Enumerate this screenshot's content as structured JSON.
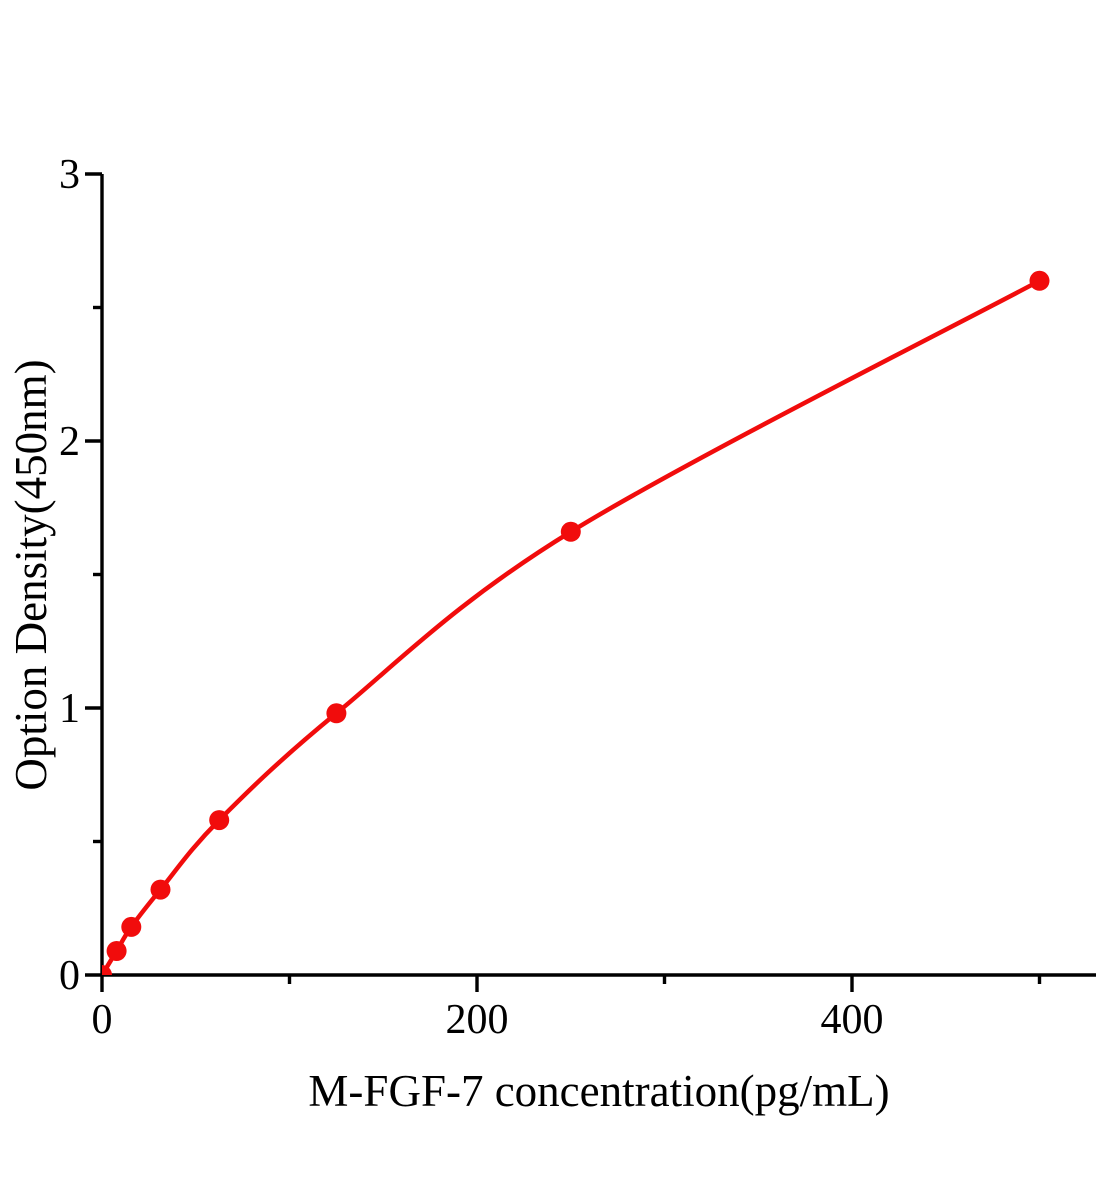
{
  "chart_data": {
    "type": "line",
    "subtype": "elisa-standard-curve-scatter-with-smooth-fit",
    "title": "",
    "xlabel": "M-FGF-7 concentration(pg/mL)",
    "ylabel": "Option Density(450nm)",
    "series": [
      {
        "name": "M-FGF-7 standard curve",
        "color": "#f10c0c",
        "marker": "filled-circle",
        "smooth": true,
        "points": [
          {
            "x": 0,
            "y": 0.0
          },
          {
            "x": 7.8,
            "y": 0.09
          },
          {
            "x": 15.6,
            "y": 0.18
          },
          {
            "x": 31.2,
            "y": 0.32
          },
          {
            "x": 62.5,
            "y": 0.58
          },
          {
            "x": 125,
            "y": 0.98
          },
          {
            "x": 250,
            "y": 1.66
          },
          {
            "x": 500,
            "y": 2.6
          }
        ]
      }
    ],
    "x_axis": {
      "min": 0,
      "max": 530,
      "major_ticks": [
        0,
        200,
        400
      ],
      "minor_ticks": [
        100,
        300,
        500
      ],
      "color": "#000000"
    },
    "y_axis": {
      "min": 0,
      "max": 3,
      "major_ticks": [
        0,
        1,
        2,
        3
      ],
      "minor_ticks": [
        0.5,
        1.5,
        2.5
      ],
      "color": "#000000"
    },
    "grid": false,
    "legend": "none",
    "background": "#ffffff"
  }
}
